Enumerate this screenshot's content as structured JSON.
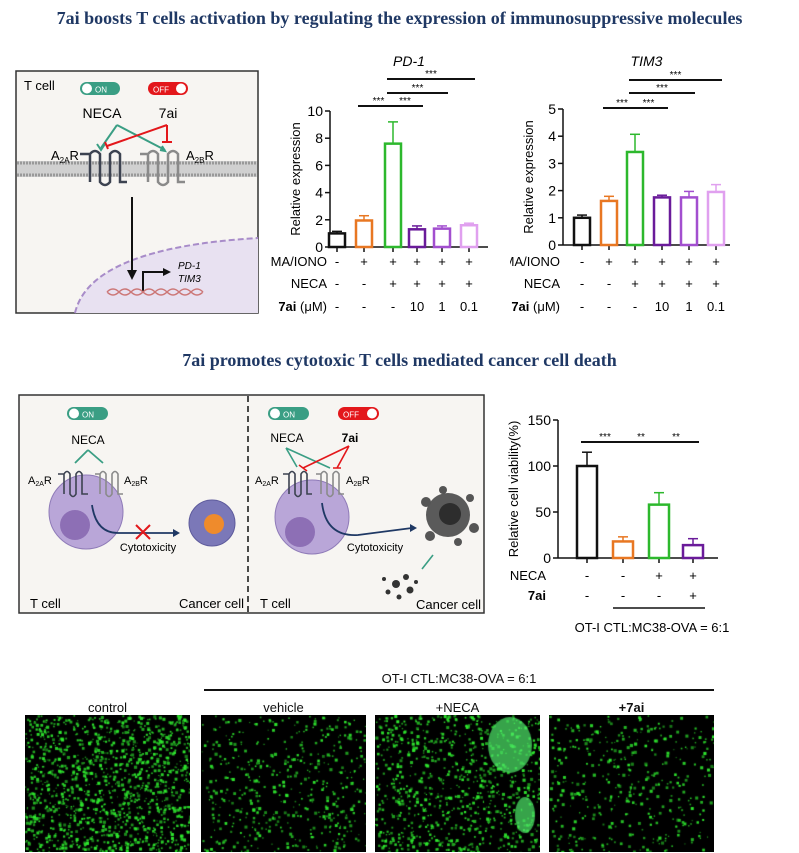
{
  "titles": {
    "top": "7ai boosts T cells activation by regulating  the expression of immunosuppressive molecules",
    "middle": "7ai promotes cytotoxic T cells mediated cancer cell death"
  },
  "colors": {
    "title": "#1f3864",
    "on_toggle": "#3a9e84",
    "off_toggle": "#e3171b",
    "activation_arrow": "#3a9e84",
    "inhibition_arrow": "#e3171b"
  },
  "diagram1": {
    "cell_label": "T cell",
    "on": "ON",
    "off": "OFF",
    "agonist": "NECA",
    "inhibitor": "7ai",
    "a2a": {
      "base": "A",
      "sub": "2A",
      "tail": "R"
    },
    "a2b": {
      "base": "A",
      "sub": "2B",
      "tail": "R"
    },
    "genes": [
      "PD-1",
      "TIM3"
    ]
  },
  "diagram2": {
    "on": "ON",
    "off": "OFF",
    "agonist": "NECA",
    "inhibitor": "7ai",
    "a2a": {
      "base": "A",
      "sub": "2A",
      "tail": "R"
    },
    "a2b": {
      "base": "A",
      "sub": "2B",
      "tail": "R"
    },
    "cytotoxicity": "Cytotoxicity",
    "t_cell": "T cell",
    "cancer_cell": "Cancer cell"
  },
  "chart_data": [
    {
      "type": "bar",
      "title": "PD-1",
      "ylabel": "Relative expression",
      "ylim": [
        0,
        10
      ],
      "yticks": [
        "0",
        "2",
        "4",
        "6",
        "8",
        "10"
      ],
      "values": [
        1.0,
        1.95,
        7.6,
        1.3,
        1.35,
        1.6
      ],
      "errors": [
        0.15,
        0.35,
        1.6,
        0.25,
        0.2,
        0.15
      ],
      "colors": [
        "#111111",
        "#e87722",
        "#2db82d",
        "#6a1b9a",
        "#a24fcf",
        "#e0a0ef"
      ],
      "rows": [
        {
          "label": "PMA/IONO",
          "cells": [
            "-",
            "+",
            "+",
            "+",
            "+",
            "+"
          ]
        },
        {
          "label": "NECA",
          "cells": [
            "-",
            "-",
            "+",
            "+",
            "+",
            "+"
          ]
        },
        {
          "label_bold": "7ai",
          "label": " (μM)",
          "cells": [
            "-",
            "-",
            "-",
            "10",
            "1",
            "0.1"
          ]
        }
      ],
      "significance": [
        {
          "from": 1,
          "to": 2,
          "label": "***"
        },
        {
          "from": 2,
          "to": 3,
          "label": "***"
        },
        {
          "from": 2,
          "to": 4,
          "label": "***"
        },
        {
          "from": 2,
          "to": 5,
          "label": "***"
        }
      ]
    },
    {
      "type": "bar",
      "title": "TIM3",
      "ylabel": "Relative expression",
      "ylim": [
        0,
        5
      ],
      "yticks": [
        "0",
        "1",
        "2",
        "3",
        "4",
        "5"
      ],
      "values": [
        1.0,
        1.62,
        3.42,
        1.75,
        1.75,
        1.95
      ],
      "errors": [
        0.1,
        0.17,
        0.65,
        0.08,
        0.22,
        0.27
      ],
      "colors": [
        "#111111",
        "#e87722",
        "#2db82d",
        "#6a1b9a",
        "#a24fcf",
        "#e0a0ef"
      ],
      "rows": [
        {
          "label": "PMA/IONO",
          "cells": [
            "-",
            "+",
            "+",
            "+",
            "+",
            "+"
          ]
        },
        {
          "label": "NECA",
          "cells": [
            "-",
            "-",
            "+",
            "+",
            "+",
            "+"
          ]
        },
        {
          "label_bold": "7ai",
          "label": " (μM)",
          "cells": [
            "-",
            "-",
            "-",
            "10",
            "1",
            "0.1"
          ]
        }
      ],
      "significance": [
        {
          "from": 1,
          "to": 2,
          "label": "***"
        },
        {
          "from": 2,
          "to": 3,
          "label": "***"
        },
        {
          "from": 2,
          "to": 4,
          "label": "***"
        },
        {
          "from": 2,
          "to": 5,
          "label": "***"
        }
      ]
    },
    {
      "type": "bar",
      "title": "",
      "ylabel": "Relative cell viability(%)",
      "ylim": [
        0,
        150
      ],
      "yticks": [
        "0",
        "50",
        "100",
        "150"
      ],
      "values": [
        100,
        18,
        58,
        14
      ],
      "errors": [
        15,
        5,
        13,
        7
      ],
      "colors": [
        "#111111",
        "#e87722",
        "#2db82d",
        "#6a1b9a"
      ],
      "rows": [
        {
          "label": "NECA",
          "cells": [
            "-",
            "-",
            "+",
            "+"
          ]
        },
        {
          "label_bold": "7ai",
          "label": "",
          "cells": [
            "-",
            "-",
            "-",
            "+"
          ]
        }
      ],
      "significance": [
        {
          "from": 0,
          "to": 1,
          "label": "***"
        },
        {
          "from": 1,
          "to": 2,
          "label": "**"
        },
        {
          "from": 2,
          "to": 3,
          "label": "**"
        }
      ],
      "caption": "OT-I CTL:MC38-OVA = 6:1",
      "caption_groups": [
        1,
        3
      ]
    }
  ],
  "micrographs": {
    "header": "OT-I CTL:MC38-OVA = 6:1",
    "panels": [
      {
        "label": "control",
        "density": 0.9
      },
      {
        "label": "vehicle",
        "density": 0.35
      },
      {
        "label": "+NECA",
        "density": 0.6
      },
      {
        "label": "+7ai",
        "density": 0.3
      }
    ],
    "stain_color": "#2ee82e"
  }
}
